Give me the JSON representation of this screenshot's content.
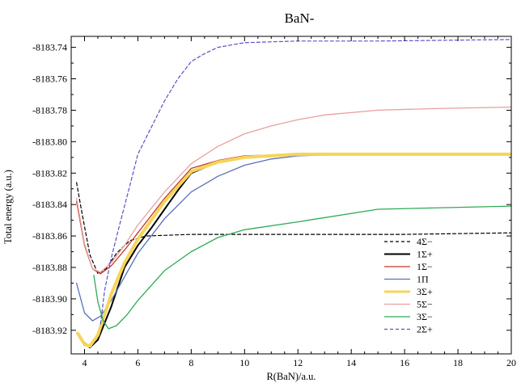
{
  "chart_data": {
    "type": "line",
    "title": "BaN-",
    "xlabel": "R(BaN)/a.u.",
    "ylabel": "Total energy (a.u.)",
    "xlim": [
      3.5,
      20
    ],
    "ylim": [
      -8183.935,
      -8183.733
    ],
    "xticks": [
      4,
      6,
      8,
      10,
      12,
      14,
      16,
      18,
      20
    ],
    "yticks": [
      -8183.92,
      -8183.9,
      -8183.88,
      -8183.86,
      -8183.84,
      -8183.82,
      -8183.8,
      -8183.78,
      -8183.76,
      -8183.74
    ],
    "ytick_labels": [
      "-8183.92",
      "-8183.90",
      "-8183.88",
      "-8183.86",
      "-8183.84",
      "-8183.82",
      "-8183.80",
      "-8183.78",
      "-8183.76",
      "-8183.74"
    ],
    "grid": false,
    "legend_position": "bottom-right",
    "series": [
      {
        "name": "4Σ−",
        "color": "#000000",
        "dash": "dashed",
        "width": 1.2,
        "points": [
          [
            3.7,
            -8183.826
          ],
          [
            3.9,
            -8183.845
          ],
          [
            4.2,
            -8183.872
          ],
          [
            4.5,
            -8183.884
          ],
          [
            4.8,
            -8183.881
          ],
          [
            5.2,
            -8183.871
          ],
          [
            5.7,
            -8183.863
          ],
          [
            6.3,
            -8183.86
          ],
          [
            8,
            -8183.859
          ],
          [
            12,
            -8183.859
          ],
          [
            16,
            -8183.859
          ],
          [
            20,
            -8183.858
          ]
        ]
      },
      {
        "name": "1Σ+",
        "color": "#000000",
        "dash": "solid",
        "width": 2,
        "points": [
          [
            3.75,
            -8183.922
          ],
          [
            4.0,
            -8183.928
          ],
          [
            4.2,
            -8183.931
          ],
          [
            4.5,
            -8183.926
          ],
          [
            5.0,
            -8183.905
          ],
          [
            5.5,
            -8183.88
          ],
          [
            6.0,
            -8183.866
          ],
          [
            6.5,
            -8183.855
          ],
          [
            7.0,
            -8183.843
          ],
          [
            7.5,
            -8183.831
          ],
          [
            8.0,
            -8183.82
          ],
          [
            9.0,
            -8183.813
          ],
          [
            10.0,
            -8183.81
          ],
          [
            12.0,
            -8183.808
          ],
          [
            15.0,
            -8183.808
          ],
          [
            18.2,
            -8183.808
          ]
        ]
      },
      {
        "name": "1Σ−",
        "color": "#c0392b",
        "dash": "solid",
        "width": 1.3,
        "points": [
          [
            3.7,
            -8183.838
          ],
          [
            4.0,
            -8183.866
          ],
          [
            4.3,
            -8183.881
          ],
          [
            4.6,
            -8183.884
          ],
          [
            5.0,
            -8183.879
          ],
          [
            5.5,
            -8183.869
          ],
          [
            6.0,
            -8183.858
          ],
          [
            7.0,
            -8183.836
          ],
          [
            8.0,
            -8183.817
          ],
          [
            9.0,
            -8183.812
          ],
          [
            10.0,
            -8183.809
          ],
          [
            12.0,
            -8183.808
          ],
          [
            15.0,
            -8183.808
          ],
          [
            20.0,
            -8183.808
          ]
        ]
      },
      {
        "name": "1Π",
        "color": "#5b6fb8",
        "dash": "solid",
        "width": 1.3,
        "points": [
          [
            3.7,
            -8183.89
          ],
          [
            4.0,
            -8183.909
          ],
          [
            4.3,
            -8183.914
          ],
          [
            4.6,
            -8183.911
          ],
          [
            5.0,
            -8183.901
          ],
          [
            5.5,
            -8183.886
          ],
          [
            6.0,
            -8183.871
          ],
          [
            7.0,
            -8183.849
          ],
          [
            8.0,
            -8183.832
          ],
          [
            9.0,
            -8183.822
          ],
          [
            10.0,
            -8183.815
          ],
          [
            11.0,
            -8183.811
          ],
          [
            12.0,
            -8183.809
          ],
          [
            14.0,
            -8183.808
          ],
          [
            17.0,
            -8183.808
          ],
          [
            20.0,
            -8183.808
          ]
        ]
      },
      {
        "name": "3Σ+",
        "color": "#f5d55a",
        "dash": "solid",
        "width": 4,
        "points": [
          [
            3.75,
            -8183.922
          ],
          [
            4.0,
            -8183.929
          ],
          [
            4.2,
            -8183.93
          ],
          [
            4.5,
            -8183.923
          ],
          [
            5.0,
            -8183.897
          ],
          [
            5.5,
            -8183.877
          ],
          [
            6.0,
            -8183.862
          ],
          [
            7.0,
            -8183.838
          ],
          [
            8.0,
            -8183.819
          ],
          [
            9.0,
            -8183.813
          ],
          [
            10.0,
            -8183.81
          ],
          [
            12.0,
            -8183.808
          ],
          [
            15.0,
            -8183.808
          ],
          [
            20.0,
            -8183.808
          ]
        ]
      },
      {
        "name": "5Σ−",
        "color": "#e8a0a0",
        "dash": "solid",
        "width": 1.3,
        "points": [
          [
            3.7,
            -8183.836
          ],
          [
            4.0,
            -8183.865
          ],
          [
            4.3,
            -8183.881
          ],
          [
            4.6,
            -8183.883
          ],
          [
            5.0,
            -8183.877
          ],
          [
            5.5,
            -8183.866
          ],
          [
            6.0,
            -8183.853
          ],
          [
            7.0,
            -8183.832
          ],
          [
            8.0,
            -8183.814
          ],
          [
            9.0,
            -8183.803
          ],
          [
            10.0,
            -8183.795
          ],
          [
            11.0,
            -8183.79
          ],
          [
            12.0,
            -8183.786
          ],
          [
            13.0,
            -8183.783
          ],
          [
            15.0,
            -8183.78
          ],
          [
            17.0,
            -8183.779
          ],
          [
            20.0,
            -8183.778
          ]
        ]
      },
      {
        "name": "3Σ−",
        "color": "#2eaa55",
        "dash": "solid",
        "width": 1.3,
        "points": [
          [
            4.35,
            -8183.885
          ],
          [
            4.5,
            -8183.902
          ],
          [
            4.7,
            -8183.914
          ],
          [
            4.9,
            -8183.919
          ],
          [
            5.2,
            -8183.917
          ],
          [
            5.6,
            -8183.91
          ],
          [
            6.0,
            -8183.901
          ],
          [
            7.0,
            -8183.882
          ],
          [
            8.0,
            -8183.87
          ],
          [
            9.0,
            -8183.861
          ],
          [
            10.0,
            -8183.856
          ],
          [
            12.0,
            -8183.851
          ],
          [
            15.0,
            -8183.843
          ],
          [
            20.0,
            -8183.841
          ]
        ]
      },
      {
        "name": "2Σ+",
        "color": "#5a52c8",
        "dash": "dashed",
        "width": 1.2,
        "points": [
          [
            4.6,
            -8183.916
          ],
          [
            4.75,
            -8183.895
          ],
          [
            5.0,
            -8183.874
          ],
          [
            5.3,
            -8183.854
          ],
          [
            5.7,
            -8183.828
          ],
          [
            6.0,
            -8183.808
          ],
          [
            6.5,
            -8183.791
          ],
          [
            7.0,
            -8183.774
          ],
          [
            7.5,
            -8183.76
          ],
          [
            8.0,
            -8183.749
          ],
          [
            8.5,
            -8183.744
          ],
          [
            9.0,
            -8183.74
          ],
          [
            10.0,
            -8183.737
          ],
          [
            12.0,
            -8183.736
          ],
          [
            15.0,
            -8183.736
          ],
          [
            20.0,
            -8183.735
          ]
        ]
      }
    ]
  }
}
